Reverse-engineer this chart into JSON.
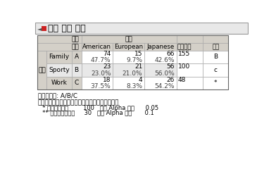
{
  "title": "产地 依据 车型",
  "rows": [
    {
      "row_label": "Family",
      "col_label": "A",
      "count": [
        "74",
        "15",
        "66",
        "155"
      ],
      "pct": [
        "47.7%",
        "9.7%",
        "42.6%"
      ],
      "compare": "B",
      "shade": false
    },
    {
      "row_label": "Sporty",
      "col_label": "B",
      "count": [
        "23",
        "21",
        "56",
        "100"
      ],
      "pct": [
        "23.0%",
        "21.0%",
        "56.0%"
      ],
      "compare": "c",
      "shade": true
    },
    {
      "row_label": "Work",
      "col_label": "C",
      "count": [
        "18",
        "4",
        "26",
        "48"
      ],
      "pct": [
        "37.5%",
        "8.3%",
        "54.2%"
      ],
      "compare": "*",
      "shade": false
    }
  ],
  "left_label": "车型",
  "h1_left": "频数",
  "h1_right": "产地",
  "h2_left": "份额",
  "h2_cols": [
    "American",
    "European",
    "Japanese",
    "总响应数",
    "比较"
  ],
  "footnote1": "默认比较组: A/B/C",
  "footnote2": "显示类别字母，它在更高份额水平下具有显著差异",
  "footnote3": "  * 基本计数警告        100   大写 Alpha 水平      0.05",
  "footnote4": "  ** 基本计数最小値     30   小写 Alpha 水平       0.1",
  "bg_color": "#ffffff",
  "header_bg": "#d4d0c8",
  "row_shade": "#e8e8e8",
  "row_shade2": "#f0f0f0",
  "border_color": "#808080",
  "title_bar_color": "#e8e8e8",
  "title_border_color": "#999999"
}
